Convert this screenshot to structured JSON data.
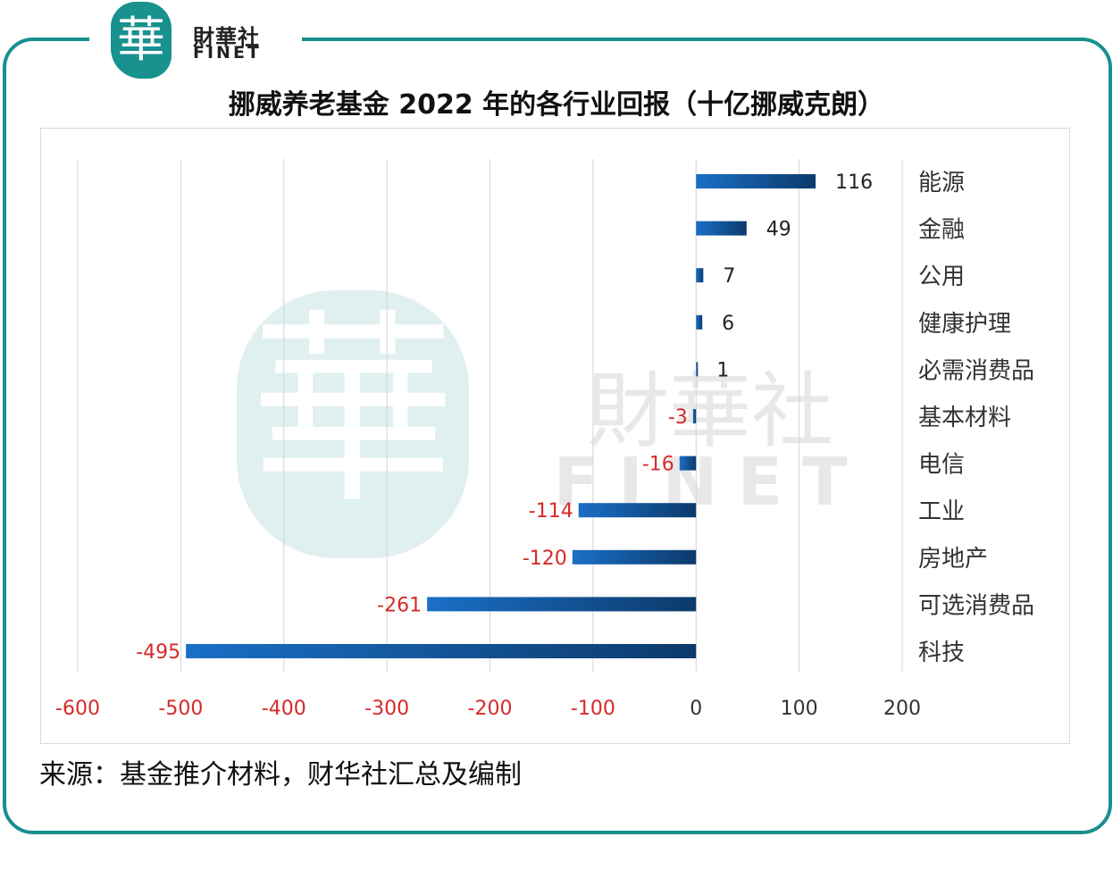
{
  "logo": {
    "mark": "華",
    "cn": "財華社",
    "en": "FINET"
  },
  "watermark": {
    "cn": "財華社",
    "en": "FINET"
  },
  "source": "来源：基金推介材料，财华社汇总及编制",
  "colors": {
    "frame": "#17908e",
    "bar_start": "#1a6fc6",
    "bar_end": "#0c3a6b",
    "negative_label": "#d62a2a",
    "positive_label": "#222222"
  },
  "chart_data": {
    "type": "bar",
    "orientation": "horizontal",
    "title": "挪威养老基金 2022 年的各行业回报（十亿挪威克朗）",
    "categories": [
      "能源",
      "金融",
      "公用",
      "健康护理",
      "必需消费品",
      "基本材料",
      "电信",
      "工业",
      "房地产",
      "可选消费品",
      "科技"
    ],
    "values": [
      116,
      49,
      7,
      6,
      1,
      -3,
      -16,
      -114,
      -120,
      -261,
      -495
    ],
    "xlim": [
      -600,
      200
    ],
    "xticks": [
      -600,
      -500,
      -400,
      -300,
      -200,
      -100,
      0,
      100,
      200
    ],
    "grid": "vertical",
    "legend": "none"
  }
}
